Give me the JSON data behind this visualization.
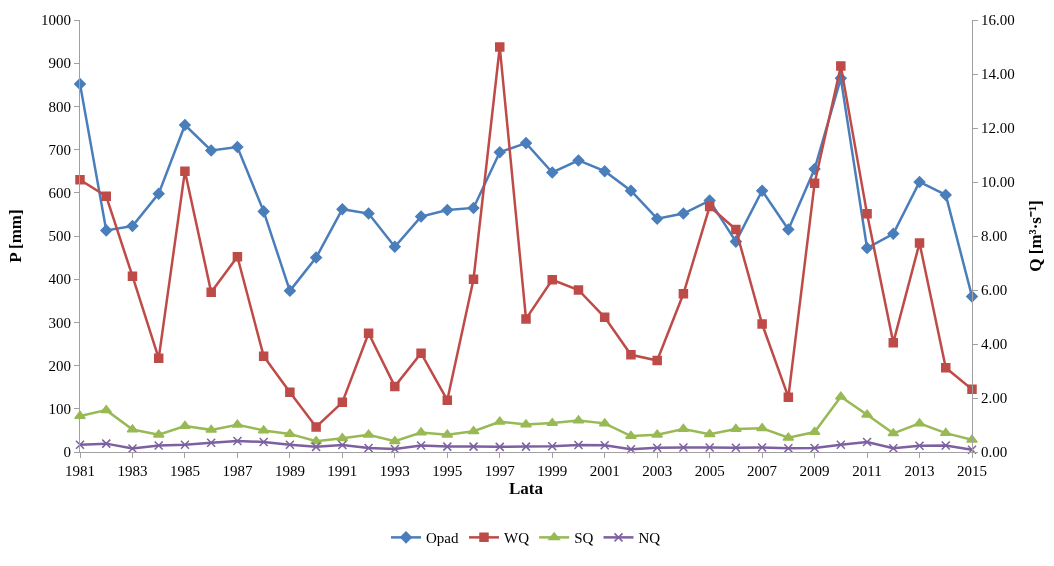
{
  "chart_data": {
    "type": "line",
    "xlabel": "Lata",
    "ylabel": "P [mm]",
    "y2label": "Q [m³·s⁻¹]",
    "x": [
      1981,
      1982,
      1983,
      1984,
      1985,
      1986,
      1987,
      1988,
      1989,
      1990,
      1991,
      1992,
      1993,
      1994,
      1995,
      1996,
      1997,
      1998,
      1999,
      2000,
      2001,
      2002,
      2003,
      2004,
      2005,
      2006,
      2007,
      2008,
      2009,
      2010,
      2011,
      2012,
      2013,
      2014,
      2015
    ],
    "series": [
      {
        "name": "Opad",
        "color": "#4a7ebb",
        "marker": "diamond",
        "values": [
          852,
          513,
          523,
          598,
          757,
          698,
          706,
          557,
          373,
          450,
          562,
          552,
          475,
          545,
          560,
          565,
          694,
          715,
          647,
          675,
          650,
          605,
          540,
          552,
          582,
          487,
          605,
          515,
          655,
          865,
          472,
          505,
          625,
          595,
          360
        ]
      },
      {
        "name": "WQ",
        "color": "#be4b48",
        "marker": "square",
        "axis": "y2",
        "values": [
          10.08,
          9.47,
          6.51,
          3.47,
          10.4,
          5.92,
          7.23,
          3.55,
          2.21,
          0.93,
          1.84,
          4.4,
          2.43,
          3.66,
          1.92,
          6.4,
          15.0,
          4.93,
          6.38,
          6.0,
          4.99,
          3.6,
          3.39,
          5.86,
          9.09,
          8.24,
          4.74,
          2.03,
          9.95,
          14.3,
          8.82,
          4.05,
          7.74,
          3.12,
          2.32
        ]
      },
      {
        "name": "SQ",
        "color": "#98b954",
        "marker": "triangle",
        "axis": "y2",
        "values": [
          1.33,
          1.55,
          0.83,
          0.64,
          0.96,
          0.82,
          1.01,
          0.8,
          0.67,
          0.4,
          0.51,
          0.64,
          0.4,
          0.72,
          0.64,
          0.77,
          1.12,
          1.02,
          1.07,
          1.17,
          1.06,
          0.59,
          0.64,
          0.85,
          0.66,
          0.85,
          0.88,
          0.53,
          0.74,
          2.05,
          1.38,
          0.69,
          1.06,
          0.7,
          0.45
        ]
      },
      {
        "name": "NQ",
        "color": "#7d60a0",
        "marker": "cross",
        "axis": "y2",
        "values": [
          0.27,
          0.31,
          0.13,
          0.24,
          0.27,
          0.34,
          0.41,
          0.37,
          0.27,
          0.19,
          0.26,
          0.15,
          0.11,
          0.24,
          0.2,
          0.2,
          0.19,
          0.2,
          0.21,
          0.26,
          0.25,
          0.1,
          0.16,
          0.17,
          0.17,
          0.16,
          0.17,
          0.14,
          0.15,
          0.27,
          0.37,
          0.14,
          0.23,
          0.24,
          0.08
        ]
      }
    ],
    "xlim": [
      1981,
      2015
    ],
    "xticks": [
      1981,
      1983,
      1985,
      1987,
      1989,
      1991,
      1993,
      1995,
      1997,
      1999,
      2001,
      2003,
      2005,
      2007,
      2009,
      2011,
      2013,
      2015
    ],
    "ylim": [
      0,
      1000
    ],
    "yticks": [
      0,
      100,
      200,
      300,
      400,
      500,
      600,
      700,
      800,
      900,
      1000
    ],
    "y2lim": [
      0,
      16
    ],
    "y2ticks": [
      {
        "value": 0,
        "label": "0.00"
      },
      {
        "value": 2,
        "label": "2.00"
      },
      {
        "value": 4,
        "label": "4.00"
      },
      {
        "value": 6,
        "label": "6.00"
      },
      {
        "value": 8,
        "label": "8.00"
      },
      {
        "value": 10,
        "label": "10.00"
      },
      {
        "value": 12,
        "label": "12.00"
      },
      {
        "value": 14,
        "label": "14.00"
      },
      {
        "value": 16,
        "label": "16.00"
      }
    ],
    "legend": "bottom",
    "line_style": "solid"
  }
}
